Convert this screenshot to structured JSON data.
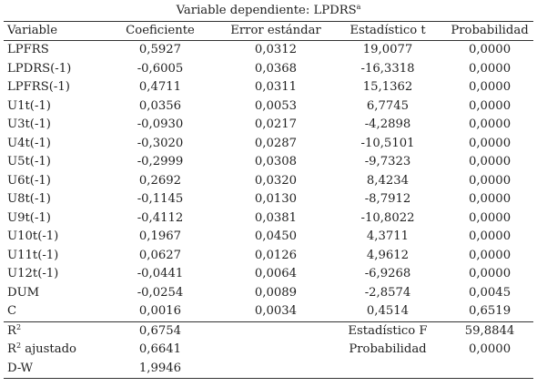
{
  "table": {
    "title": "Variable dependiente: LPDRS",
    "title_sup": "a",
    "headers": [
      "Variable",
      "Coeficiente",
      "Error estándar",
      "Estadístico t",
      "Probabilidad"
    ],
    "rows": [
      [
        "LPFRS",
        "0,5927",
        "0,0312",
        "19,0077",
        "0,0000"
      ],
      [
        "LPDRS(-1)",
        "-0,6005",
        "0,0368",
        "-16,3318",
        "0,0000"
      ],
      [
        "LPFRS(-1)",
        "0,4711",
        "0,0311",
        "15,1362",
        "0,0000"
      ],
      [
        "U1t(-1)",
        "0,0356",
        "0,0053",
        "6,7745",
        "0,0000"
      ],
      [
        "U3t(-1)",
        "-0,0930",
        "0,0217",
        "-4,2898",
        "0,0000"
      ],
      [
        "U4t(-1)",
        "-0,3020",
        "0,0287",
        "-10,5101",
        "0,0000"
      ],
      [
        "U5t(-1)",
        "-0,2999",
        "0,0308",
        "-9,7323",
        "0,0000"
      ],
      [
        "U6t(-1)",
        "0,2692",
        "0,0320",
        "8,4234",
        "0,0000"
      ],
      [
        "U8t(-1)",
        "-0,1145",
        "0,0130",
        "-8,7912",
        "0,0000"
      ],
      [
        "U9t(-1)",
        "-0,4112",
        "0,0381",
        "-10,8022",
        "0,0000"
      ],
      [
        "U10t(-1)",
        "0,1967",
        "0,0450",
        "4,3711",
        "0,0000"
      ],
      [
        "U11t(-1)",
        "0,0627",
        "0,0126",
        "4,9612",
        "0,0000"
      ],
      [
        "U12t(-1)",
        "-0,0441",
        "0,0064",
        "-6,9268",
        "0,0000"
      ],
      [
        "DUM",
        "-0,0254",
        "0,0089",
        "-2,8574",
        "0,0045"
      ],
      [
        "C",
        "0,0016",
        "0,0034",
        "0,4514",
        "0,6519"
      ]
    ],
    "stats": [
      {
        "label": "R",
        "label_sup": "2",
        "label_rest": "",
        "value": "0,6754",
        "label2": "Estadístico F",
        "value2": "59,8844"
      },
      {
        "label": "R",
        "label_sup": "2",
        "label_rest": " ajustado",
        "value": "0,6641",
        "label2": "Probabilidad",
        "value2": "0,0000"
      },
      {
        "label": "D-W",
        "label_sup": "",
        "label_rest": "",
        "value": "1,9946",
        "label2": "",
        "value2": ""
      }
    ]
  }
}
